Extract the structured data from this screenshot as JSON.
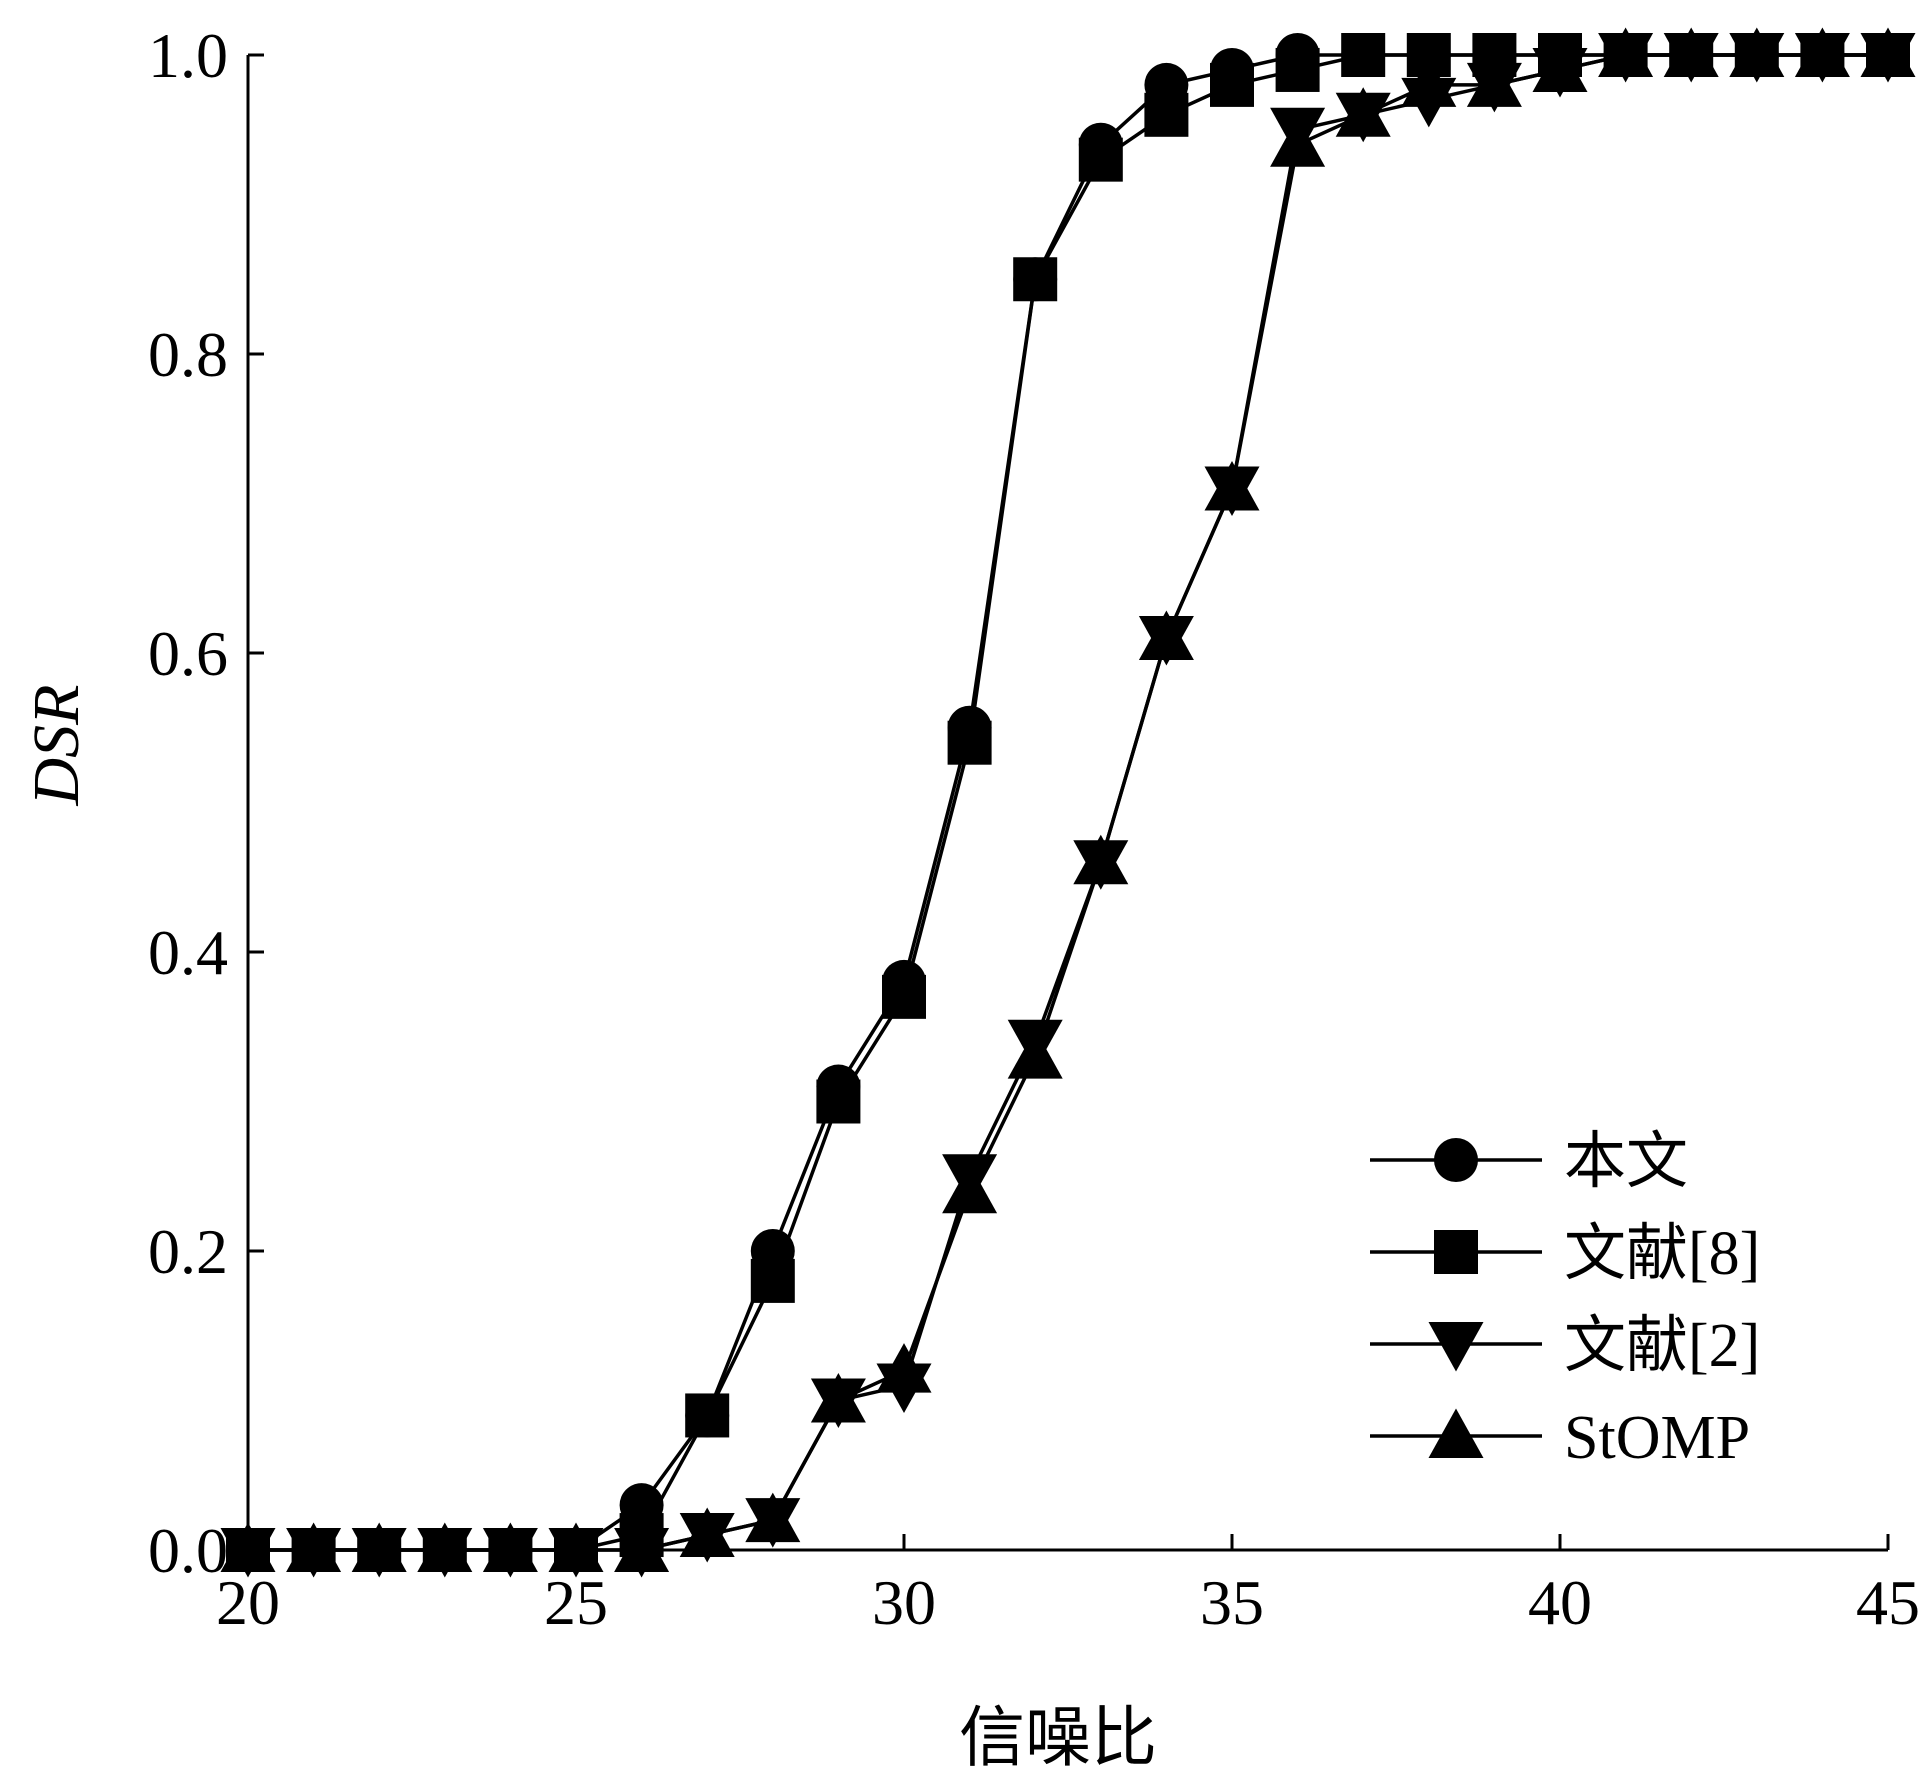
{
  "chart_data": {
    "type": "line",
    "xlabel": "信噪比",
    "ylabel": "DSR",
    "xlim": [
      20,
      45
    ],
    "ylim": [
      0,
      1.0
    ],
    "xticks": [
      "20",
      "25",
      "30",
      "35",
      "40",
      "45"
    ],
    "yticks": [
      "0.0",
      "0.2",
      "0.4",
      "0.6",
      "0.8",
      "1.0"
    ],
    "grid": false,
    "legend_position": "bottom-right",
    "x": [
      20,
      21,
      22,
      23,
      24,
      25,
      26,
      27,
      28,
      29,
      30,
      31,
      32,
      33,
      34,
      35,
      36,
      37,
      38,
      39,
      40,
      41,
      42,
      43,
      44,
      45
    ],
    "series": [
      {
        "name": "本文",
        "marker": "circle",
        "values": [
          0,
          0,
          0,
          0,
          0,
          0,
          0.03,
          0.09,
          0.2,
          0.31,
          0.38,
          0.55,
          0.85,
          0.94,
          0.98,
          0.99,
          1.0,
          1.0,
          1.0,
          1.0,
          1.0,
          1.0,
          1.0,
          1.0,
          1.0,
          1.0
        ]
      },
      {
        "name": "文献[8]",
        "marker": "square",
        "values": [
          0,
          0,
          0,
          0,
          0,
          0,
          0.01,
          0.09,
          0.18,
          0.3,
          0.37,
          0.54,
          0.85,
          0.93,
          0.96,
          0.98,
          0.99,
          1.0,
          1.0,
          1.0,
          1.0,
          1.0,
          1.0,
          1.0,
          1.0,
          1.0
        ]
      },
      {
        "name": "文献[2]",
        "marker": "triangle-down",
        "values": [
          0,
          0,
          0,
          0,
          0,
          0,
          0,
          0.01,
          0.02,
          0.1,
          0.11,
          0.25,
          0.34,
          0.46,
          0.61,
          0.71,
          0.95,
          0.96,
          0.97,
          0.98,
          0.99,
          1.0,
          1.0,
          1.0,
          1.0,
          1.0
        ]
      },
      {
        "name": "StOMP",
        "marker": "triangle-up",
        "values": [
          0,
          0,
          0,
          0,
          0,
          0,
          0,
          0.01,
          0.02,
          0.1,
          0.12,
          0.24,
          0.33,
          0.46,
          0.61,
          0.71,
          0.94,
          0.96,
          0.98,
          0.98,
          0.99,
          1.0,
          1.0,
          1.0,
          1.0,
          1.0
        ]
      }
    ]
  }
}
